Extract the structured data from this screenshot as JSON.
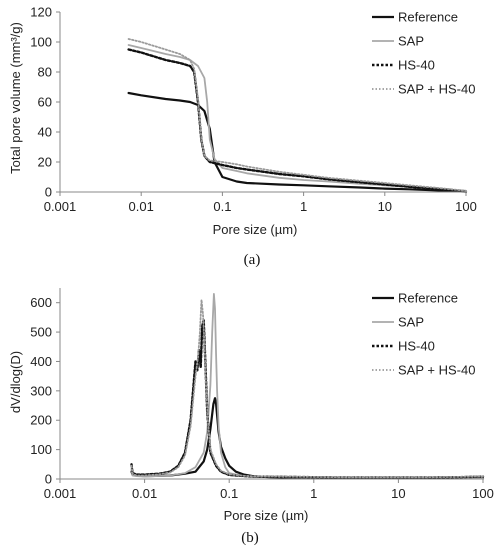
{
  "colors": {
    "reference": "#111111",
    "sap": "#a8a8a8",
    "hs40": "#111111",
    "sap_hs40": "#9a9a9a",
    "axis": "#888888",
    "text": "#222222"
  },
  "chart_data": [
    {
      "type": "line",
      "panel_label": "(a)",
      "xlabel": "Pore size (µm)",
      "ylabel": "Total pore volume (mm³/g)",
      "xscale": "log",
      "xlim": [
        0.001,
        100
      ],
      "ylim": [
        0,
        120
      ],
      "x_ticks": [
        "0.001",
        "0.01",
        "0.1",
        "1",
        "10",
        "100"
      ],
      "y_ticks": [
        "0",
        "20",
        "40",
        "60",
        "80",
        "100",
        "120"
      ],
      "grid": false,
      "legend": "top-right",
      "series": [
        {
          "name": "Reference",
          "style": "solid-black",
          "x": [
            0.007,
            0.01,
            0.02,
            0.03,
            0.04,
            0.05,
            0.06,
            0.07,
            0.08,
            0.1,
            0.15,
            0.2,
            0.5,
            1,
            2,
            5,
            10,
            20,
            50,
            100,
            120
          ],
          "y": [
            66,
            64.5,
            62,
            61,
            60,
            58,
            54,
            42,
            20,
            10,
            7,
            6,
            5,
            4.5,
            3.8,
            3,
            2.3,
            1.8,
            1,
            0.3,
            0
          ]
        },
        {
          "name": "SAP",
          "style": "solid-gray",
          "x": [
            0.007,
            0.01,
            0.02,
            0.03,
            0.04,
            0.05,
            0.06,
            0.065,
            0.07,
            0.08,
            0.1,
            0.15,
            0.2,
            0.5,
            1,
            2,
            5,
            10,
            20,
            50,
            100,
            120
          ],
          "y": [
            98,
            96,
            92,
            90,
            88,
            84,
            76,
            60,
            35,
            22,
            16,
            14,
            12.5,
            9.5,
            8,
            7,
            5.5,
            4.5,
            3.5,
            2,
            0.5,
            0
          ]
        },
        {
          "name": "HS-40",
          "style": "dotted-black",
          "x": [
            0.007,
            0.01,
            0.02,
            0.03,
            0.04,
            0.045,
            0.05,
            0.055,
            0.06,
            0.07,
            0.1,
            0.15,
            0.2,
            0.5,
            1,
            2,
            5,
            10,
            20,
            50,
            100,
            120
          ],
          "y": [
            95,
            93,
            88,
            86,
            84,
            80,
            60,
            35,
            24,
            20,
            18,
            16,
            15,
            12,
            10.5,
            8.5,
            6.5,
            5,
            3.5,
            2,
            0.5,
            0
          ]
        },
        {
          "name": "SAP + HS-40",
          "style": "dotted-gray",
          "x": [
            0.007,
            0.01,
            0.02,
            0.03,
            0.04,
            0.045,
            0.05,
            0.055,
            0.06,
            0.07,
            0.1,
            0.15,
            0.2,
            0.5,
            1,
            2,
            5,
            10,
            20,
            50,
            100,
            120
          ],
          "y": [
            102,
            100,
            95,
            92,
            88,
            82,
            62,
            36,
            24,
            21,
            20,
            18.5,
            17,
            13.5,
            11.5,
            9.5,
            7.5,
            6,
            4.5,
            2.5,
            0.8,
            0
          ]
        }
      ]
    },
    {
      "type": "line",
      "panel_label": "(b)",
      "xlabel": "Pore size (µm)",
      "ylabel": "dV/dlog(D)",
      "xscale": "log",
      "xlim": [
        0.001,
        100
      ],
      "ylim": [
        0,
        650
      ],
      "x_ticks": [
        "0.001",
        "0.01",
        "0.1",
        "1",
        "10",
        "100"
      ],
      "y_ticks": [
        "0",
        "100",
        "200",
        "300",
        "400",
        "500",
        "600"
      ],
      "grid": false,
      "legend": "top-right",
      "series": [
        {
          "name": "Reference",
          "style": "solid-black",
          "x": [
            0.007,
            0.0072,
            0.008,
            0.01,
            0.02,
            0.03,
            0.04,
            0.05,
            0.055,
            0.06,
            0.065,
            0.068,
            0.07,
            0.075,
            0.08,
            0.09,
            0.1,
            0.12,
            0.15,
            0.2,
            0.3,
            0.5,
            1,
            2,
            5,
            10,
            20,
            50,
            100
          ],
          "y": [
            25,
            15,
            12,
            10,
            12,
            18,
            25,
            60,
            100,
            170,
            255,
            275,
            255,
            160,
            110,
            70,
            45,
            25,
            15,
            9,
            6,
            5,
            5,
            4,
            4,
            4,
            3,
            3,
            2
          ]
        },
        {
          "name": "SAP",
          "style": "solid-gray",
          "x": [
            0.007,
            0.0072,
            0.008,
            0.01,
            0.02,
            0.03,
            0.04,
            0.05,
            0.055,
            0.06,
            0.063,
            0.066,
            0.068,
            0.07,
            0.072,
            0.075,
            0.08,
            0.09,
            0.1,
            0.15,
            0.2,
            0.5,
            1,
            2,
            5,
            10,
            20,
            50,
            100
          ],
          "y": [
            30,
            12,
            10,
            8,
            12,
            20,
            40,
            90,
            160,
            320,
            500,
            630,
            580,
            420,
            300,
            180,
            90,
            40,
            20,
            10,
            8,
            6,
            5,
            5,
            4,
            4,
            4,
            3,
            2
          ]
        },
        {
          "name": "HS-40",
          "style": "dotted-black",
          "x": [
            0.007,
            0.0072,
            0.008,
            0.01,
            0.015,
            0.02,
            0.025,
            0.03,
            0.035,
            0.04,
            0.042,
            0.044,
            0.046,
            0.048,
            0.05,
            0.052,
            0.055,
            0.06,
            0.07,
            0.08,
            0.1,
            0.15,
            0.2,
            0.5,
            1,
            2,
            5,
            10,
            20,
            50,
            100
          ],
          "y": [
            50,
            20,
            15,
            15,
            18,
            25,
            45,
            90,
            200,
            400,
            370,
            440,
            380,
            520,
            540,
            410,
            230,
            90,
            45,
            25,
            14,
            10,
            8,
            7,
            6,
            5,
            5,
            5,
            5,
            6,
            8
          ]
        },
        {
          "name": "SAP + HS-40",
          "style": "dotted-gray",
          "x": [
            0.007,
            0.0072,
            0.008,
            0.01,
            0.015,
            0.02,
            0.025,
            0.03,
            0.035,
            0.04,
            0.043,
            0.045,
            0.047,
            0.049,
            0.051,
            0.053,
            0.056,
            0.06,
            0.07,
            0.08,
            0.1,
            0.15,
            0.2,
            0.5,
            1,
            2,
            5,
            10,
            20,
            50,
            100
          ],
          "y": [
            45,
            18,
            12,
            12,
            16,
            22,
            40,
            80,
            180,
            350,
            420,
            500,
            610,
            560,
            460,
            330,
            200,
            100,
            50,
            28,
            16,
            11,
            9,
            8,
            7,
            6,
            6,
            6,
            6,
            7,
            9
          ]
        }
      ]
    }
  ]
}
